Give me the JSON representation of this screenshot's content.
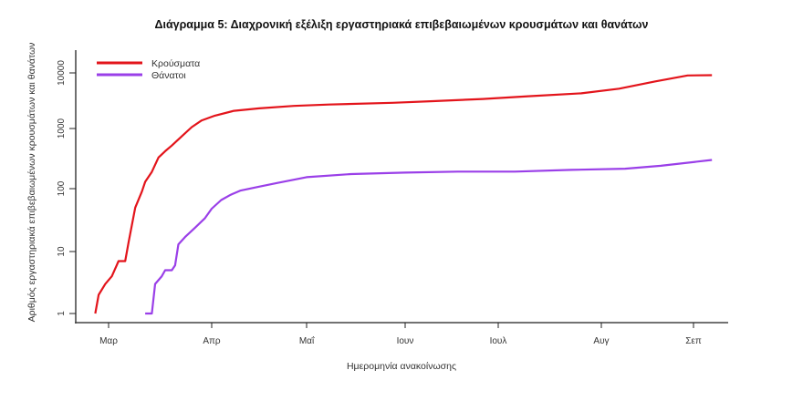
{
  "chart_data": {
    "type": "line",
    "title": "Διάγραμμα 5: Διαχρονική εξέλιξη εργαστηριακά επιβεβαιωμένων κρουσμάτων και θανάτων",
    "xlabel": "Ημερομηνία ανακοίνωσης",
    "ylabel": "Αριθμός εργαστηριακά επιβεβαιωμένων κρουσμάτων και θανάτων",
    "yscale": "log",
    "ylim": [
      1,
      12000
    ],
    "y_ticks": [
      {
        "value": 1,
        "label": "1"
      },
      {
        "value": 10,
        "label": "10"
      },
      {
        "value": 100,
        "label": "100"
      },
      {
        "value": 1000,
        "label": "1000"
      },
      {
        "value": 10000,
        "label": "10000"
      }
    ],
    "x_ticks": [
      "Μαρ",
      "Απρ",
      "Μαΐ",
      "Ιουν",
      "Ιουλ",
      "Αυγ",
      "Σεπ"
    ],
    "grid": false,
    "legend_position": "top-left",
    "series": [
      {
        "name": "Κρούσματα",
        "color": "#e3141b",
        "points": [
          [
            "Feb 26",
            1
          ],
          [
            "Feb 27",
            2
          ],
          [
            "Feb 29",
            3
          ],
          [
            "Mar 2",
            4
          ],
          [
            "Mar 4",
            7
          ],
          [
            "Mar 6",
            7
          ],
          [
            "Mar 7",
            14
          ],
          [
            "Mar 9",
            50
          ],
          [
            "Mar 11",
            90
          ],
          [
            "Mar 12",
            130
          ],
          [
            "Mar 14",
            190
          ],
          [
            "Mar 16",
            330
          ],
          [
            "Mar 18",
            420
          ],
          [
            "Mar 20",
            520
          ],
          [
            "Mar 23",
            740
          ],
          [
            "Mar 26",
            1060
          ],
          [
            "Mar 29",
            1400
          ],
          [
            "Apr 2",
            1700
          ],
          [
            "Apr 8",
            2080
          ],
          [
            "Apr 16",
            2300
          ],
          [
            "Apr 27",
            2550
          ],
          [
            "May 8",
            2700
          ],
          [
            "May 28",
            2900
          ],
          [
            "Jun 10",
            3100
          ],
          [
            "Jun 26",
            3400
          ],
          [
            "Jul 10",
            3800
          ],
          [
            "Jul 26",
            4300
          ],
          [
            "Aug 7",
            5200
          ],
          [
            "Aug 19",
            7000
          ],
          [
            "Aug 30",
            9000
          ],
          [
            "Sep 7",
            11000
          ]
        ]
      },
      {
        "name": "Θάνατοι",
        "color": "#9a3fe8",
        "points": [
          [
            "Mar 12",
            1
          ],
          [
            "Mar 14",
            1
          ],
          [
            "Mar 15",
            3
          ],
          [
            "Mar 17",
            4
          ],
          [
            "Mar 18",
            5
          ],
          [
            "Mar 20",
            5
          ],
          [
            "Mar 21",
            6
          ],
          [
            "Mar 22",
            13
          ],
          [
            "Mar 24",
            17
          ],
          [
            "Mar 27",
            24
          ],
          [
            "Mar 30",
            34
          ],
          [
            "Apr 1",
            48
          ],
          [
            "Apr 4",
            66
          ],
          [
            "Apr 7",
            80
          ],
          [
            "Apr 10",
            93
          ],
          [
            "Apr 16",
            108
          ],
          [
            "Apr 22",
            125
          ],
          [
            "May 1",
            155
          ],
          [
            "May 15",
            175
          ],
          [
            "Jun 1",
            185
          ],
          [
            "Jun 18",
            192
          ],
          [
            "Jul 6",
            192
          ],
          [
            "Jul 23",
            205
          ],
          [
            "Aug 9",
            215
          ],
          [
            "Aug 21",
            240
          ],
          [
            "Sep 7",
            300
          ]
        ]
      }
    ]
  },
  "legend": {
    "items": [
      {
        "label": "Κρούσματα",
        "color": "#e3141b"
      },
      {
        "label": "Θάνατοι",
        "color": "#9a3fe8"
      }
    ]
  }
}
